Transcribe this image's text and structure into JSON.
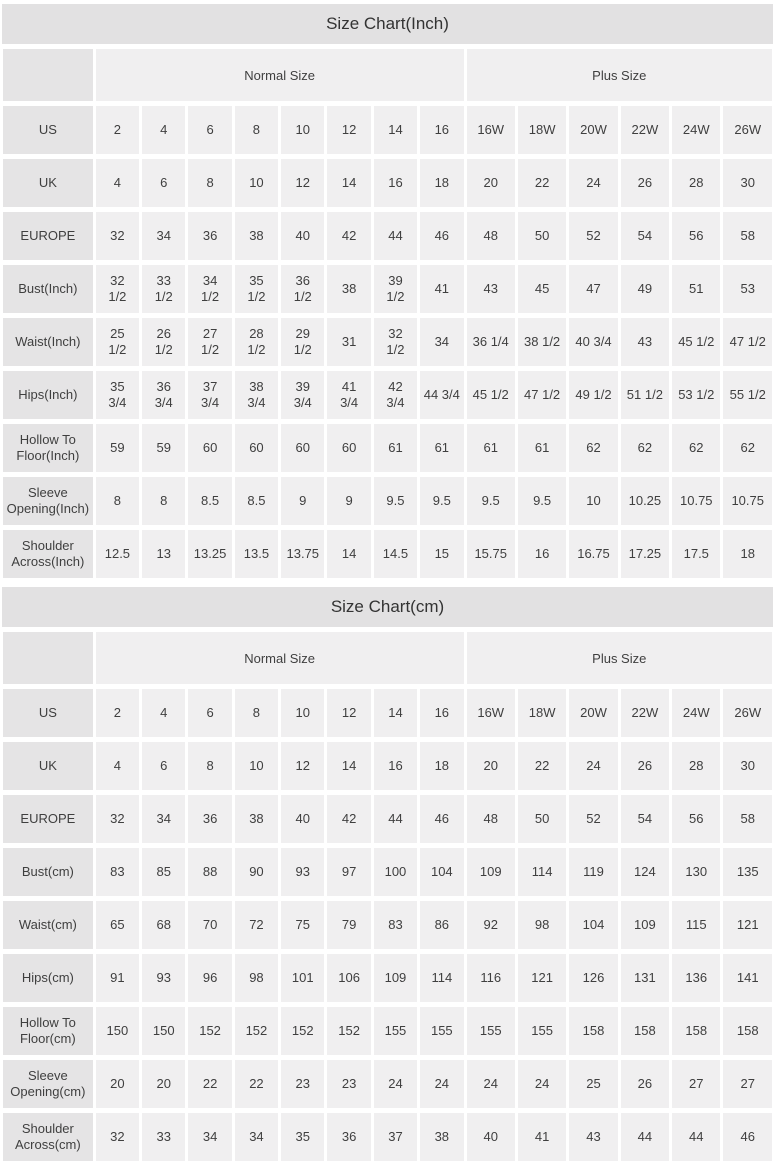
{
  "colors": {
    "title_bg": "#e2e1e2",
    "row_header_bg": "#e5e4e5",
    "cell_bg": "#f0eff0",
    "text": "#3f3f3f",
    "page_bg": "#ffffff"
  },
  "tables": [
    {
      "title": "Size Chart(Inch)",
      "column_groups": [
        {
          "label": "",
          "span": 1
        },
        {
          "label": "Normal Size",
          "span": 8
        },
        {
          "label": "Plus Size",
          "span": 6
        }
      ],
      "rows": [
        {
          "header": "US",
          "cells": [
            "2",
            "4",
            "6",
            "8",
            "10",
            "12",
            "14",
            "16",
            "16W",
            "18W",
            "20W",
            "22W",
            "24W",
            "26W"
          ]
        },
        {
          "header": "UK",
          "cells": [
            "4",
            "6",
            "8",
            "10",
            "12",
            "14",
            "16",
            "18",
            "20",
            "22",
            "24",
            "26",
            "28",
            "30"
          ]
        },
        {
          "header": "EUROPE",
          "cells": [
            "32",
            "34",
            "36",
            "38",
            "40",
            "42",
            "44",
            "46",
            "48",
            "50",
            "52",
            "54",
            "56",
            "58"
          ]
        },
        {
          "header": "Bust(Inch)",
          "cells": [
            "32\n1/2",
            "33\n1/2",
            "34\n1/2",
            "35\n1/2",
            "36\n1/2",
            "38",
            "39\n1/2",
            "41",
            "43",
            "45",
            "47",
            "49",
            "51",
            "53"
          ]
        },
        {
          "header": "Waist(Inch)",
          "cells": [
            "25\n1/2",
            "26\n1/2",
            "27\n1/2",
            "28\n1/2",
            "29\n1/2",
            "31",
            "32\n1/2",
            "34",
            "36 1/4",
            "38 1/2",
            "40 3/4",
            "43",
            "45 1/2",
            "47 1/2"
          ]
        },
        {
          "header": "Hips(Inch)",
          "cells": [
            "35\n3/4",
            "36\n3/4",
            "37\n3/4",
            "38\n3/4",
            "39\n3/4",
            "41\n3/4",
            "42\n3/4",
            "44 3/4",
            "45 1/2",
            "47 1/2",
            "49 1/2",
            "51 1/2",
            "53 1/2",
            "55 1/2"
          ]
        },
        {
          "header": "Hollow To Floor(Inch)",
          "cells": [
            "59",
            "59",
            "60",
            "60",
            "60",
            "60",
            "61",
            "61",
            "61",
            "61",
            "62",
            "62",
            "62",
            "62"
          ]
        },
        {
          "header": "Sleeve Opening(Inch)",
          "cells": [
            "8",
            "8",
            "8.5",
            "8.5",
            "9",
            "9",
            "9.5",
            "9.5",
            "9.5",
            "9.5",
            "10",
            "10.25",
            "10.75",
            "10.75"
          ]
        },
        {
          "header": "Shoulder Across(Inch)",
          "cells": [
            "12.5",
            "13",
            "13.25",
            "13.5",
            "13.75",
            "14",
            "14.5",
            "15",
            "15.75",
            "16",
            "16.75",
            "17.25",
            "17.5",
            "18"
          ]
        }
      ]
    },
    {
      "title": "Size Chart(cm)",
      "column_groups": [
        {
          "label": "",
          "span": 1
        },
        {
          "label": "Normal Size",
          "span": 8
        },
        {
          "label": "Plus Size",
          "span": 6
        }
      ],
      "rows": [
        {
          "header": "US",
          "cells": [
            "2",
            "4",
            "6",
            "8",
            "10",
            "12",
            "14",
            "16",
            "16W",
            "18W",
            "20W",
            "22W",
            "24W",
            "26W"
          ]
        },
        {
          "header": "UK",
          "cells": [
            "4",
            "6",
            "8",
            "10",
            "12",
            "14",
            "16",
            "18",
            "20",
            "22",
            "24",
            "26",
            "28",
            "30"
          ]
        },
        {
          "header": "EUROPE",
          "cells": [
            "32",
            "34",
            "36",
            "38",
            "40",
            "42",
            "44",
            "46",
            "48",
            "50",
            "52",
            "54",
            "56",
            "58"
          ]
        },
        {
          "header": "Bust(cm)",
          "cells": [
            "83",
            "85",
            "88",
            "90",
            "93",
            "97",
            "100",
            "104",
            "109",
            "114",
            "119",
            "124",
            "130",
            "135"
          ]
        },
        {
          "header": "Waist(cm)",
          "cells": [
            "65",
            "68",
            "70",
            "72",
            "75",
            "79",
            "83",
            "86",
            "92",
            "98",
            "104",
            "109",
            "115",
            "121"
          ]
        },
        {
          "header": "Hips(cm)",
          "cells": [
            "91",
            "93",
            "96",
            "98",
            "101",
            "106",
            "109",
            "114",
            "116",
            "121",
            "126",
            "131",
            "136",
            "141"
          ]
        },
        {
          "header": "Hollow To Floor(cm)",
          "cells": [
            "150",
            "150",
            "152",
            "152",
            "152",
            "152",
            "155",
            "155",
            "155",
            "155",
            "158",
            "158",
            "158",
            "158"
          ]
        },
        {
          "header": "Sleeve Opening(cm)",
          "cells": [
            "20",
            "20",
            "22",
            "22",
            "23",
            "23",
            "24",
            "24",
            "24",
            "24",
            "25",
            "26",
            "27",
            "27"
          ]
        },
        {
          "header": "Shoulder Across(cm)",
          "cells": [
            "32",
            "33",
            "34",
            "34",
            "35",
            "36",
            "37",
            "38",
            "40",
            "41",
            "43",
            "44",
            "44",
            "46"
          ]
        }
      ]
    }
  ]
}
